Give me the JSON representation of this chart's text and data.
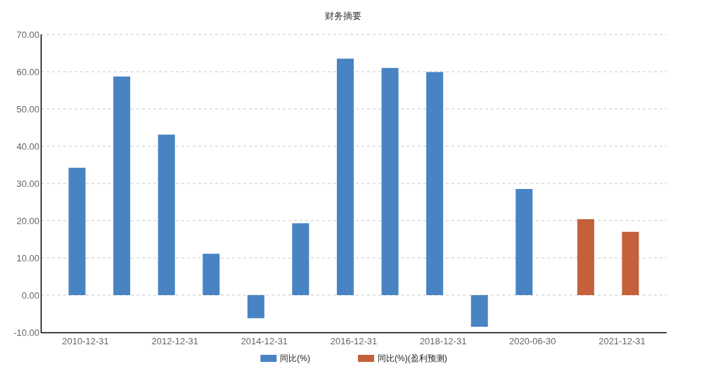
{
  "chart_data": {
    "type": "bar",
    "title": "财务摘要",
    "categories": [
      "2010-12-31",
      null,
      "2012-12-31",
      null,
      "2014-12-31",
      null,
      "2016-12-31",
      null,
      "2018-12-31",
      null,
      "2020-06-30",
      null,
      "2021-12-31"
    ],
    "series": [
      {
        "name": "同比(%)",
        "color": "#4884c4",
        "values": [
          34.2,
          58.7,
          43.1,
          11.1,
          -6.2,
          19.3,
          63.5,
          61.0,
          59.9,
          -8.5,
          28.5,
          null,
          null
        ]
      },
      {
        "name": "同比(%)(盈利预测)",
        "color": "#c4603a",
        "values": [
          null,
          null,
          null,
          null,
          null,
          null,
          null,
          null,
          null,
          null,
          null,
          20.4,
          17.0
        ]
      }
    ],
    "ylim": [
      -10,
      70
    ],
    "yticks": [
      {
        "value": -10,
        "label": "-10.00"
      },
      {
        "value": 0,
        "label": "0.00"
      },
      {
        "value": 10,
        "label": "10.00"
      },
      {
        "value": 20,
        "label": "20.00"
      },
      {
        "value": 30,
        "label": "30.00"
      },
      {
        "value": 40,
        "label": "40.00"
      },
      {
        "value": 50,
        "label": "50.00"
      },
      {
        "value": 60,
        "label": "60.00"
      },
      {
        "value": 70,
        "label": "70.00"
      }
    ],
    "grid": "y",
    "legend": "bottom"
  }
}
